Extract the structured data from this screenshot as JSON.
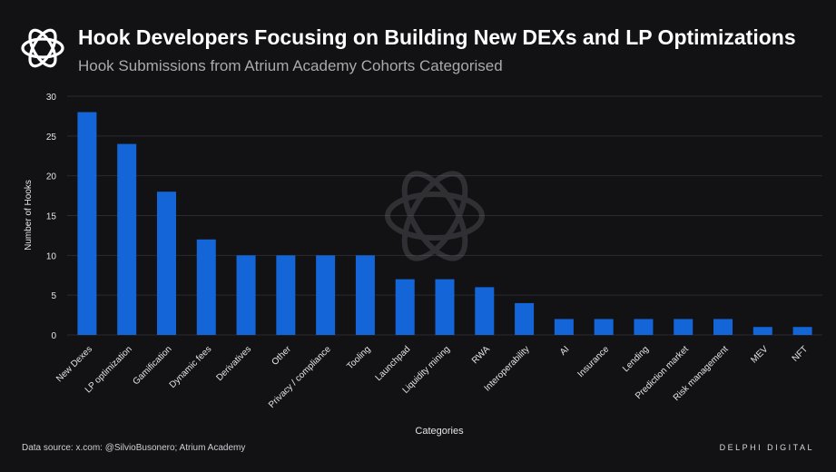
{
  "header": {
    "title": "Hook Developers Focusing on Building New DEXs and LP Optimizations",
    "subtitle": "Hook Submissions from Atrium Academy Cohorts Categorised"
  },
  "footer": {
    "source": "Data source: x.com: @SilvioBusonero; Atrium Academy",
    "brand": "DELPHI DIGITAL"
  },
  "colors": {
    "bar": "#1466d8",
    "grid": "#2a2a30",
    "axis_text": "#e6e6ea",
    "background": "#121215"
  },
  "chart_data": {
    "type": "bar",
    "title": "Hook Developers Focusing on Building New DEXs and LP Optimizations",
    "subtitle": "Hook Submissions from Atrium Academy Cohorts Categorised",
    "xlabel": "Categories",
    "ylabel": "Number of Hooks",
    "ylim": [
      0,
      30
    ],
    "yticks": [
      0,
      5,
      10,
      15,
      20,
      25,
      30
    ],
    "grid": true,
    "categories": [
      "New Dexes",
      "LP optimization",
      "Gamification",
      "Dynamic fees",
      "Derivatives",
      "Other",
      "Privacy / compliance",
      "Tooling",
      "Launchpad",
      "Liquidity mining",
      "RWA",
      "Interoperability",
      "AI",
      "Insurance",
      "Lending",
      "Prediction market",
      "Risk management",
      "MEV",
      "NFT"
    ],
    "values": [
      28,
      24,
      18,
      12,
      10,
      10,
      10,
      10,
      7,
      7,
      6,
      4,
      2,
      2,
      2,
      2,
      2,
      1,
      1
    ]
  }
}
